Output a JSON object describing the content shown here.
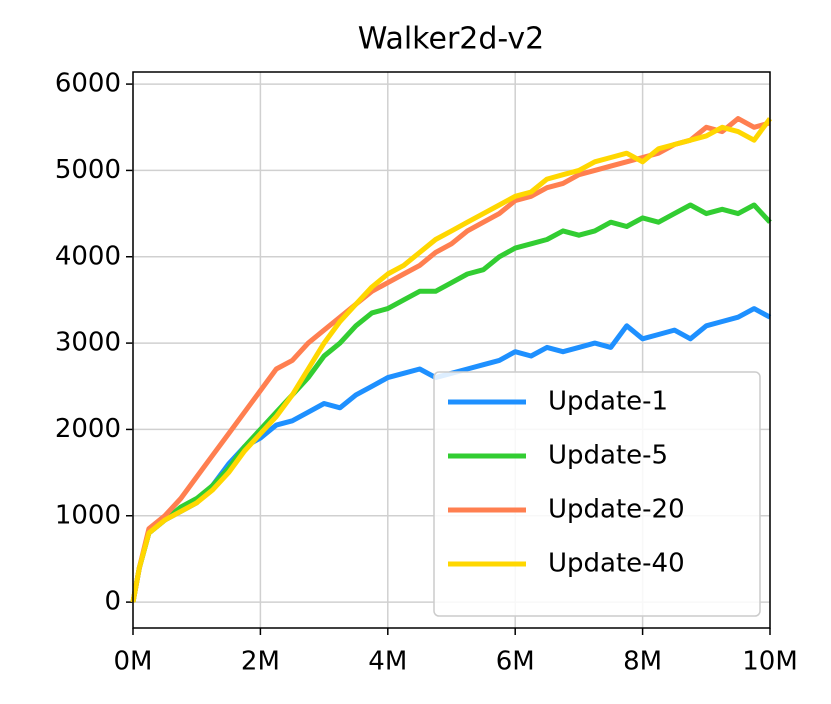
{
  "chart_data": {
    "type": "line",
    "title": "Walker2d-v2",
    "x": [
      0,
      0.1,
      0.25,
      0.5,
      0.75,
      1,
      1.25,
      1.5,
      1.75,
      2,
      2.25,
      2.5,
      2.75,
      3,
      3.25,
      3.5,
      3.75,
      4,
      4.25,
      4.5,
      4.75,
      5,
      5.25,
      5.5,
      5.75,
      6,
      6.25,
      6.5,
      6.75,
      7,
      7.25,
      7.5,
      7.75,
      8,
      8.25,
      8.5,
      8.75,
      9,
      9.25,
      9.5,
      9.75,
      10
    ],
    "series": [
      {
        "name": "Update-1",
        "color": "#1e90ff",
        "values": [
          0,
          400,
          800,
          950,
          1050,
          1150,
          1350,
          1600,
          1800,
          1900,
          2050,
          2100,
          2200,
          2300,
          2250,
          2400,
          2500,
          2600,
          2650,
          2700,
          2600,
          2650,
          2700,
          2750,
          2800,
          2900,
          2850,
          2950,
          2900,
          2950,
          3000,
          2950,
          3200,
          3050,
          3100,
          3150,
          3050,
          3200,
          3250,
          3300,
          3400,
          3300
        ]
      },
      {
        "name": "Update-5",
        "color": "#32cd32",
        "values": [
          0,
          400,
          800,
          950,
          1100,
          1200,
          1350,
          1550,
          1800,
          2000,
          2200,
          2400,
          2600,
          2850,
          3000,
          3200,
          3350,
          3400,
          3500,
          3600,
          3600,
          3700,
          3800,
          3850,
          4000,
          4100,
          4150,
          4200,
          4300,
          4250,
          4300,
          4400,
          4350,
          4450,
          4400,
          4500,
          4600,
          4500,
          4550,
          4500,
          4600,
          4400
        ]
      },
      {
        "name": "Update-20",
        "color": "#ff7f50",
        "values": [
          0,
          400,
          850,
          1000,
          1200,
          1450,
          1700,
          1950,
          2200,
          2450,
          2700,
          2800,
          3000,
          3150,
          3300,
          3450,
          3600,
          3700,
          3800,
          3900,
          4050,
          4150,
          4300,
          4400,
          4500,
          4650,
          4700,
          4800,
          4850,
          4950,
          5000,
          5050,
          5100,
          5150,
          5200,
          5300,
          5350,
          5500,
          5450,
          5600,
          5500,
          5550
        ]
      },
      {
        "name": "Update-40",
        "color": "#ffd700",
        "values": [
          0,
          400,
          800,
          950,
          1050,
          1150,
          1300,
          1500,
          1750,
          1950,
          2150,
          2400,
          2700,
          3000,
          3250,
          3450,
          3650,
          3800,
          3900,
          4050,
          4200,
          4300,
          4400,
          4500,
          4600,
          4700,
          4750,
          4900,
          4950,
          5000,
          5100,
          5150,
          5200,
          5100,
          5250,
          5300,
          5350,
          5400,
          5500,
          5450,
          5350,
          5600
        ]
      }
    ],
    "xlim": [
      0,
      10
    ],
    "xticks": [
      {
        "value": 0,
        "label": "0M"
      },
      {
        "value": 2,
        "label": "2M"
      },
      {
        "value": 4,
        "label": "4M"
      },
      {
        "value": 6,
        "label": "6M"
      },
      {
        "value": 8,
        "label": "8M"
      },
      {
        "value": 10,
        "label": "10M"
      }
    ],
    "ylim": [
      -300,
      6140
    ],
    "yticks": [
      0,
      1000,
      2000,
      3000,
      4000,
      5000,
      6000
    ],
    "grid": true,
    "legend": "lower right"
  }
}
